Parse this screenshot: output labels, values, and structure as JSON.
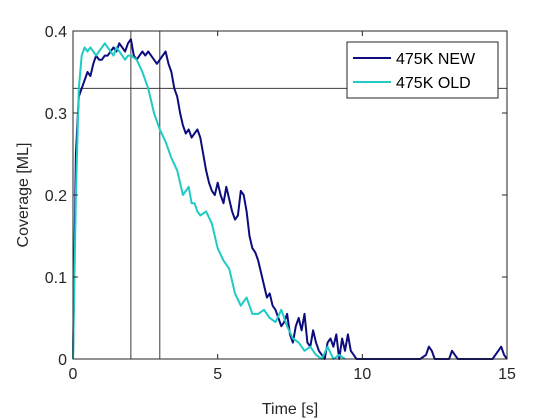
{
  "chart_data": {
    "type": "line",
    "title": "",
    "xlabel": "Time [s]",
    "ylabel": "Coverage [ML]",
    "xlim": [
      0,
      15
    ],
    "ylim": [
      0,
      0.4
    ],
    "xticks": [
      0,
      5,
      10,
      15
    ],
    "yticks": [
      0,
      0.1,
      0.2,
      0.3,
      0.4
    ],
    "xtick_labels": [
      "0",
      "5",
      "10",
      "15"
    ],
    "ytick_labels": [
      "0",
      "0.1",
      "0.2",
      "0.3",
      "0.4"
    ],
    "grid": false,
    "legend_position": "top-right",
    "reference_lines": {
      "horizontal": [
        0.33
      ],
      "vertical": [
        2.0,
        3.0
      ]
    },
    "series": [
      {
        "name": "475K NEW",
        "color": "#0c0c7c",
        "x": [
          0.0,
          0.1,
          0.2,
          0.3,
          0.4,
          0.5,
          0.6,
          0.7,
          0.8,
          0.9,
          1.0,
          1.1,
          1.2,
          1.3,
          1.4,
          1.5,
          1.6,
          1.7,
          1.8,
          1.9,
          2.0,
          2.1,
          2.2,
          2.3,
          2.4,
          2.5,
          2.6,
          2.7,
          2.8,
          2.9,
          3.0,
          3.1,
          3.2,
          3.3,
          3.4,
          3.5,
          3.6,
          3.7,
          3.8,
          3.9,
          4.0,
          4.1,
          4.2,
          4.3,
          4.4,
          4.5,
          4.6,
          4.7,
          4.8,
          4.9,
          5.0,
          5.1,
          5.2,
          5.3,
          5.4,
          5.5,
          5.6,
          5.7,
          5.8,
          5.9,
          6.0,
          6.1,
          6.2,
          6.3,
          6.4,
          6.5,
          6.6,
          6.7,
          6.8,
          6.9,
          7.0,
          7.1,
          7.2,
          7.3,
          7.4,
          7.5,
          7.6,
          7.7,
          7.8,
          7.9,
          8.0,
          8.1,
          8.2,
          8.3,
          8.4,
          8.5,
          8.6,
          8.7,
          8.8,
          8.9,
          9.0,
          9.1,
          9.2,
          9.3,
          9.4,
          9.5,
          9.6,
          9.7,
          9.8,
          10.0,
          10.5,
          11.0,
          11.5,
          12.0,
          12.2,
          12.3,
          12.4,
          12.5,
          13.0,
          13.1,
          13.2,
          13.3,
          14.0,
          14.5,
          14.7,
          14.8,
          14.9,
          15.0
        ],
        "y": [
          0.0,
          0.25,
          0.32,
          0.33,
          0.34,
          0.35,
          0.345,
          0.36,
          0.37,
          0.365,
          0.365,
          0.37,
          0.37,
          0.375,
          0.38,
          0.375,
          0.385,
          0.38,
          0.375,
          0.385,
          0.39,
          0.37,
          0.365,
          0.37,
          0.375,
          0.37,
          0.375,
          0.37,
          0.365,
          0.36,
          0.365,
          0.37,
          0.375,
          0.36,
          0.35,
          0.33,
          0.32,
          0.3,
          0.285,
          0.275,
          0.28,
          0.27,
          0.275,
          0.28,
          0.27,
          0.25,
          0.23,
          0.215,
          0.205,
          0.2,
          0.215,
          0.2,
          0.19,
          0.21,
          0.195,
          0.18,
          0.17,
          0.175,
          0.205,
          0.2,
          0.18,
          0.15,
          0.135,
          0.13,
          0.12,
          0.105,
          0.09,
          0.075,
          0.08,
          0.065,
          0.06,
          0.05,
          0.04,
          0.045,
          0.055,
          0.03,
          0.02,
          0.04,
          0.05,
          0.035,
          0.055,
          0.02,
          0.015,
          0.035,
          0.02,
          0.01,
          0.005,
          0.0,
          0.02,
          0.025,
          0.015,
          0.03,
          0.0,
          0.025,
          0.01,
          0.03,
          0.01,
          0.005,
          0.0,
          0.0,
          0.0,
          0.0,
          0.0,
          0.0,
          0.005,
          0.015,
          0.01,
          0.0,
          0.0,
          0.01,
          0.005,
          0.0,
          0.0,
          0.0,
          0.01,
          0.015,
          0.005,
          0.0
        ]
      },
      {
        "name": "475K OLD",
        "color": "#1fcbc4",
        "x": [
          0.0,
          0.1,
          0.2,
          0.3,
          0.4,
          0.5,
          0.6,
          0.7,
          0.8,
          0.9,
          1.0,
          1.1,
          1.2,
          1.3,
          1.4,
          1.5,
          1.6,
          1.7,
          1.8,
          1.9,
          2.0,
          2.2,
          2.4,
          2.6,
          2.8,
          3.0,
          3.2,
          3.4,
          3.6,
          3.8,
          4.0,
          4.1,
          4.2,
          4.3,
          4.4,
          4.6,
          4.8,
          5.0,
          5.2,
          5.4,
          5.6,
          5.8,
          6.0,
          6.2,
          6.4,
          6.6,
          6.8,
          7.0,
          7.2,
          7.4,
          7.6,
          7.8,
          8.0,
          8.2,
          8.4,
          8.6,
          8.8,
          9.0,
          9.2,
          9.4
        ],
        "y": [
          0.0,
          0.2,
          0.33,
          0.37,
          0.38,
          0.375,
          0.38,
          0.375,
          0.37,
          0.375,
          0.38,
          0.385,
          0.38,
          0.375,
          0.37,
          0.38,
          0.375,
          0.37,
          0.365,
          0.37,
          0.37,
          0.365,
          0.35,
          0.33,
          0.3,
          0.28,
          0.265,
          0.245,
          0.23,
          0.2,
          0.21,
          0.19,
          0.19,
          0.18,
          0.175,
          0.18,
          0.165,
          0.135,
          0.12,
          0.11,
          0.08,
          0.065,
          0.075,
          0.055,
          0.055,
          0.06,
          0.05,
          0.045,
          0.06,
          0.04,
          0.025,
          0.02,
          0.01,
          0.015,
          0.005,
          0.0,
          0.015,
          0.0,
          0.005,
          0.0
        ]
      }
    ]
  }
}
